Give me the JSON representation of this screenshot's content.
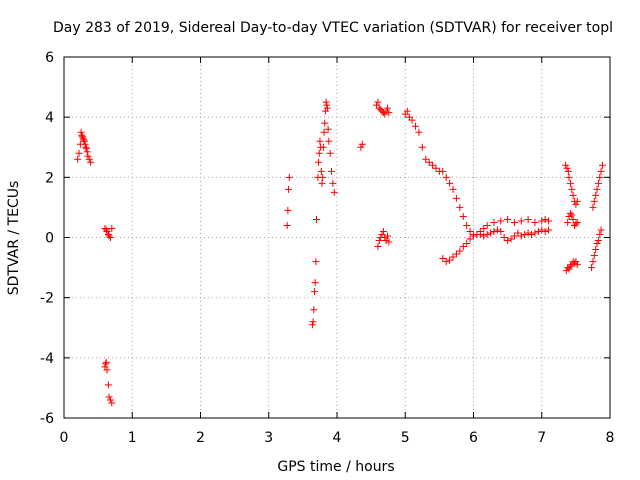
{
  "chart_data": {
    "type": "scatter",
    "title": "Day 283 of 2019, Sidereal Day-to-day VTEC variation (SDTVAR) for receiver topl",
    "xlabel": "GPS time / hours",
    "ylabel": "SDTVAR / TECUs",
    "xlim": [
      0,
      8
    ],
    "ylim": [
      -6,
      6
    ],
    "xticks": [
      0,
      1,
      2,
      3,
      4,
      5,
      6,
      7,
      8
    ],
    "yticks": [
      -6,
      -4,
      -2,
      0,
      2,
      4,
      6
    ],
    "xtick_labels": [
      "0",
      "1",
      "2",
      "3",
      "4",
      "5",
      "6",
      "7",
      "8"
    ],
    "ytick_labels": [
      "-6",
      "-4",
      "-2",
      "0",
      "2",
      "4",
      "6"
    ],
    "grid": true,
    "marker": "+",
    "series": [
      {
        "name": "SDTVAR",
        "color": "#ff0000",
        "x": [
          0.2,
          0.22,
          0.24,
          0.25,
          0.26,
          0.27,
          0.28,
          0.29,
          0.3,
          0.31,
          0.32,
          0.33,
          0.34,
          0.35,
          0.37,
          0.39,
          0.6,
          0.62,
          0.63,
          0.65,
          0.66,
          0.68,
          0.7,
          0.6,
          0.61,
          0.62,
          0.63,
          0.65,
          0.66,
          0.68,
          0.7,
          3.27,
          3.28,
          3.29,
          3.3,
          3.64,
          3.65,
          3.66,
          3.67,
          3.68,
          3.69,
          3.7,
          3.72,
          3.73,
          3.74,
          3.75,
          3.76,
          3.77,
          3.78,
          3.79,
          3.8,
          3.81,
          3.82,
          3.83,
          3.84,
          3.85,
          3.86,
          3.87,
          3.88,
          3.9,
          3.92,
          3.94,
          3.96,
          4.35,
          4.37,
          4.58,
          4.6,
          4.62,
          4.64,
          4.66,
          4.68,
          4.7,
          4.72,
          4.74,
          4.76,
          4.6,
          4.62,
          4.64,
          4.66,
          4.68,
          4.7,
          4.72,
          4.74,
          4.76,
          5.0,
          5.03,
          5.06,
          5.1,
          5.15,
          5.2,
          5.25,
          5.3,
          5.35,
          5.4,
          5.45,
          5.5,
          5.55,
          5.6,
          5.65,
          5.7,
          5.75,
          5.8,
          5.85,
          5.9,
          5.95,
          6.0,
          6.05,
          6.1,
          6.15,
          6.2,
          6.3,
          6.4,
          6.5,
          6.6,
          6.7,
          6.8,
          6.9,
          7.0,
          7.05,
          7.1,
          5.55,
          5.6,
          5.65,
          5.7,
          5.75,
          5.8,
          5.85,
          5.9,
          5.95,
          6.0,
          6.05,
          6.1,
          6.15,
          6.2,
          6.25,
          6.3,
          6.35,
          6.4,
          6.45,
          6.5,
          6.55,
          6.6,
          6.65,
          6.7,
          6.75,
          6.8,
          6.85,
          6.9,
          6.95,
          7.0,
          7.05,
          7.1,
          7.35,
          7.37,
          7.39,
          7.4,
          7.42,
          7.44,
          7.46,
          7.48,
          7.5,
          7.52,
          7.38,
          7.4,
          7.42,
          7.44,
          7.46,
          7.48,
          7.5,
          7.52,
          7.36,
          7.38,
          7.4,
          7.42,
          7.44,
          7.46,
          7.48,
          7.5,
          7.52,
          7.73,
          7.75,
          7.77,
          7.79,
          7.81,
          7.83,
          7.85,
          7.87,
          7.75,
          7.77,
          7.79,
          7.81,
          7.83,
          7.85,
          7.87,
          7.89
        ],
        "y": [
          2.6,
          2.8,
          3.1,
          3.5,
          3.4,
          3.35,
          3.3,
          3.25,
          3.2,
          3.1,
          3.0,
          2.95,
          2.85,
          2.7,
          2.6,
          2.5,
          0.3,
          0.25,
          0.2,
          0.1,
          0.05,
          0.0,
          0.3,
          -4.3,
          -4.2,
          -4.15,
          -4.4,
          -4.9,
          -5.3,
          -5.4,
          -5.5,
          0.4,
          0.9,
          1.6,
          2.0,
          -2.9,
          -2.8,
          -2.4,
          -1.8,
          -1.5,
          -0.8,
          0.6,
          2.0,
          2.5,
          2.8,
          3.2,
          3.0,
          2.2,
          1.8,
          2.0,
          3.0,
          3.5,
          3.8,
          4.2,
          4.5,
          4.4,
          4.3,
          3.6,
          3.2,
          2.8,
          2.2,
          1.8,
          1.5,
          3.0,
          3.1,
          4.4,
          4.5,
          4.3,
          4.25,
          4.2,
          4.15,
          4.1,
          4.2,
          4.3,
          4.15,
          -0.3,
          -0.1,
          0.0,
          0.1,
          0.2,
          0.0,
          -0.1,
          0.05,
          -0.15,
          4.1,
          4.2,
          4.0,
          3.9,
          3.7,
          3.5,
          3.0,
          2.6,
          2.5,
          2.4,
          2.3,
          2.2,
          2.2,
          2.0,
          1.8,
          1.6,
          1.3,
          1.0,
          0.7,
          0.4,
          0.2,
          0.1,
          0.1,
          0.2,
          0.3,
          0.4,
          0.5,
          0.55,
          0.6,
          0.5,
          0.55,
          0.6,
          0.5,
          0.55,
          0.6,
          0.55,
          -0.7,
          -0.8,
          -0.75,
          -0.65,
          -0.55,
          -0.45,
          -0.3,
          -0.2,
          -0.05,
          0.05,
          0.1,
          0.1,
          0.05,
          0.1,
          0.15,
          0.2,
          0.25,
          0.2,
          0.0,
          -0.1,
          -0.05,
          0.05,
          0.15,
          0.05,
          0.1,
          0.15,
          0.1,
          0.15,
          0.2,
          0.25,
          0.2,
          0.25,
          2.4,
          2.3,
          2.2,
          2.0,
          1.8,
          1.6,
          1.4,
          1.2,
          1.1,
          1.2,
          0.5,
          0.7,
          0.8,
          0.75,
          0.6,
          0.4,
          0.45,
          0.5,
          -1.1,
          -1.0,
          -1.05,
          -0.95,
          -0.9,
          -0.8,
          -0.85,
          -0.8,
          -0.9,
          -1.0,
          -0.8,
          -0.6,
          -0.4,
          -0.2,
          -0.1,
          0.1,
          0.25,
          1.0,
          1.2,
          1.4,
          1.6,
          1.8,
          2.0,
          2.2,
          2.4
        ]
      }
    ]
  }
}
